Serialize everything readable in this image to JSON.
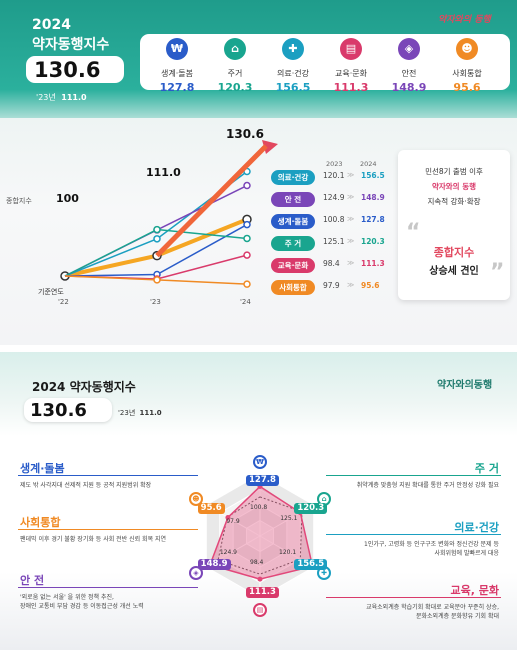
{
  "top": {
    "year_label": "2024",
    "index_title": "약자동행지수",
    "index_value": "130.6",
    "prev_label": "'23년",
    "prev_value": "111.0",
    "slogan": "약자와의 동행",
    "categories": [
      {
        "name": "생계·돌봄",
        "value": "127.8",
        "color": "#2a5cc9",
        "icon": "wallet-icon"
      },
      {
        "name": "주거",
        "value": "120.3",
        "color": "#19a58f",
        "icon": "house-icon"
      },
      {
        "name": "의료·건강",
        "value": "156.5",
        "color": "#1b9fc1",
        "icon": "health-icon"
      },
      {
        "name": "교육·문화",
        "value": "111.3",
        "color": "#d93a6b",
        "icon": "book-icon"
      },
      {
        "name": "안전",
        "value": "148.9",
        "color": "#7a46b8",
        "icon": "shield-icon"
      },
      {
        "name": "사회통합",
        "value": "95.6",
        "color": "#f08a24",
        "icon": "people-icon"
      }
    ]
  },
  "trend": {
    "legend_label": "종합지수",
    "start_value": "100",
    "mid_value": "111.0",
    "end_value": "130.6",
    "base_year_label": "기준연도",
    "years": [
      "'22",
      "'23",
      "'24"
    ],
    "col_headers": [
      "2023",
      "2024"
    ],
    "rows": [
      {
        "name": "의료·건강",
        "v2023": "120.1",
        "v2024": "156.5",
        "color": "#1b9fc1"
      },
      {
        "name": "안 전",
        "v2023": "124.9",
        "v2024": "148.9",
        "color": "#7a46b8"
      },
      {
        "name": "생계·돌봄",
        "v2023": "100.8",
        "v2024": "127.8",
        "color": "#2a5cc9"
      },
      {
        "name": "주 거",
        "v2023": "125.1",
        "v2024": "120.3",
        "color": "#19a58f"
      },
      {
        "name": "교육·문화",
        "v2023": "98.4",
        "v2024": "111.3",
        "color": "#d93a6b"
      },
      {
        "name": "사회통합",
        "v2023": "97.9",
        "v2024": "95.6",
        "color": "#f08a24"
      }
    ],
    "arrow_glyph": "≫"
  },
  "callout": {
    "line1": "민선8기 출범 이후",
    "line2": "약자와의 동행",
    "line3": "지속적 강화·확장",
    "highlight": "종합지수",
    "line4": "상승세 견인"
  },
  "chart_data": {
    "type": "line",
    "x": [
      "'22",
      "'23",
      "'24"
    ],
    "series": [
      {
        "name": "종합지수",
        "values": [
          100,
          111.0,
          130.6
        ]
      },
      {
        "name": "의료·건강",
        "values": [
          100,
          120.1,
          156.5
        ]
      },
      {
        "name": "안 전",
        "values": [
          100,
          124.9,
          148.9
        ]
      },
      {
        "name": "생계·돌봄",
        "values": [
          100,
          100.8,
          127.8
        ]
      },
      {
        "name": "주 거",
        "values": [
          100,
          125.1,
          120.3
        ]
      },
      {
        "name": "교육·문화",
        "values": [
          100,
          98.4,
          111.3
        ]
      },
      {
        "name": "사회통합",
        "values": [
          100,
          97.9,
          95.6
        ]
      }
    ]
  },
  "bottom": {
    "title": "2024 약자동행지수",
    "index_value": "130.6",
    "prev_label": "'23년",
    "prev_value": "111.0",
    "logo": "약자와의동행",
    "left_items": [
      {
        "title": "생계·돌봄",
        "desc": "제도 밖 사각지대 선제적 지원 등 공적 지원범위 확장",
        "color": "#2a5cc9"
      },
      {
        "title": "사회통합",
        "desc": "팬데믹 이후 경기 불황 장기화 등 사회 전반 신뢰 회복 지연",
        "color": "#f08a24"
      },
      {
        "title": "안 전",
        "desc": "'외로움 없는 서울' 을 위한 정책 추진,\n장애인 교통비 부담 경감 등 이동접근성 개선 노력",
        "color": "#7a46b8"
      }
    ],
    "right_items": [
      {
        "title": "주 거",
        "desc": "취약계층 맞춤형 지원 확대를 통한 주거 안정성 강화 필요",
        "color": "#19a58f"
      },
      {
        "title": "의료·건강",
        "desc": "1인가구, 고령화 등 인구구조 변화와 정신건강 문제 등\n사회위험에 발빠르게 대응",
        "color": "#1b9fc1"
      },
      {
        "title": "교육, 문화",
        "desc": "교육소외계층 학습기회 확대로 교육분야 꾸준히 상승,\n문화소외계층 문화향유 기회 확대",
        "color": "#d93a6b"
      }
    ]
  },
  "radar": {
    "axes": [
      "생계·돌봄",
      "주거",
      "의료·건강",
      "교육·문화",
      "안전",
      "사회통합"
    ],
    "v2024": [
      127.8,
      120.3,
      156.5,
      111.3,
      148.9,
      95.6
    ],
    "v2023": [
      100.8,
      125.1,
      120.1,
      98.4,
      124.9,
      97.9
    ],
    "labels2024": [
      "127.8",
      "120.3",
      "156.5",
      "111.3",
      "148.9",
      "95.6"
    ],
    "labels2023": [
      "100.8",
      "125.1",
      "120.1",
      "98.4",
      "124.9",
      "97.9"
    ]
  }
}
